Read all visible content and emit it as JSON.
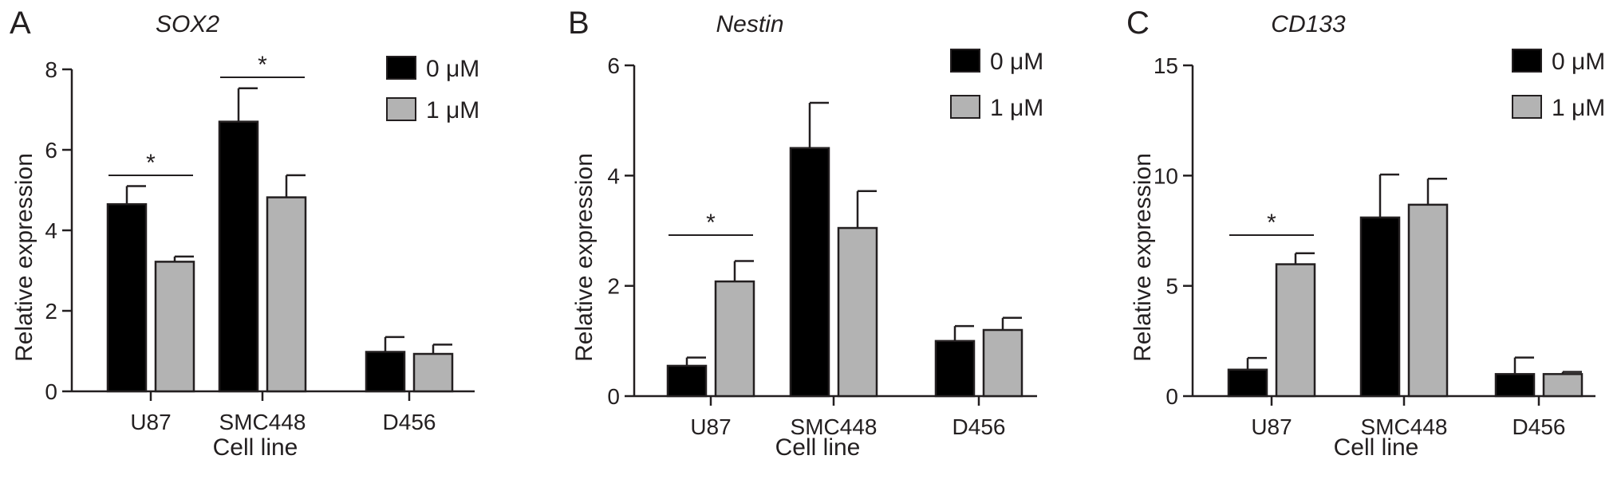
{
  "colors": {
    "series_0uM": "#000000",
    "series_1uM": "#b3b3b3",
    "axis": "#231f20"
  },
  "chart_data": [
    {
      "panel_letter": "A",
      "type": "bar",
      "title": "SOX2",
      "xlabel": "Cell line",
      "ylabel": "Relative expression",
      "categories": [
        "U87",
        "SMC448",
        "D456"
      ],
      "ylim": [
        0,
        8
      ],
      "yticks": [
        0,
        2,
        4,
        6,
        8
      ],
      "series": [
        {
          "name": "0 μM",
          "values": [
            4.65,
            6.7,
            0.98
          ],
          "errors": [
            0.45,
            0.83,
            0.37
          ]
        },
        {
          "name": "1 μM",
          "values": [
            3.22,
            4.82,
            0.93
          ],
          "errors": [
            0.13,
            0.55,
            0.23
          ]
        }
      ],
      "significance": [
        {
          "category": "U87",
          "label": "*"
        },
        {
          "category": "SMC448",
          "label": "*"
        }
      ],
      "legend_position": "top-right",
      "grid": false
    },
    {
      "panel_letter": "B",
      "type": "bar",
      "title": "Nestin",
      "xlabel": "Cell line",
      "ylabel": "Relative expression",
      "categories": [
        "U87",
        "SMC448",
        "D456"
      ],
      "ylim": [
        0,
        6
      ],
      "yticks": [
        0,
        2,
        4,
        6
      ],
      "series": [
        {
          "name": "0 μM",
          "values": [
            0.55,
            4.5,
            1.0
          ],
          "errors": [
            0.15,
            0.82,
            0.27
          ]
        },
        {
          "name": "1 μM",
          "values": [
            2.08,
            3.05,
            1.2
          ],
          "errors": [
            0.37,
            0.67,
            0.22
          ]
        }
      ],
      "significance": [
        {
          "category": "U87",
          "label": "*"
        }
      ],
      "legend_position": "top-right",
      "grid": false
    },
    {
      "panel_letter": "C",
      "type": "bar",
      "title": "CD133",
      "xlabel": "Cell line",
      "ylabel": "Relative expression",
      "categories": [
        "U87",
        "SMC448",
        "D456"
      ],
      "ylim": [
        0,
        15
      ],
      "yticks": [
        0,
        5,
        10,
        15
      ],
      "series": [
        {
          "name": "0 μM",
          "values": [
            1.2,
            8.1,
            1.0
          ],
          "errors": [
            0.53,
            1.95,
            0.75
          ]
        },
        {
          "name": "1 μM",
          "values": [
            5.98,
            8.68,
            1.0
          ],
          "errors": [
            0.5,
            1.18,
            0.1
          ]
        }
      ],
      "significance": [
        {
          "category": "U87",
          "label": "*"
        }
      ],
      "legend_position": "top-right",
      "grid": false
    }
  ]
}
